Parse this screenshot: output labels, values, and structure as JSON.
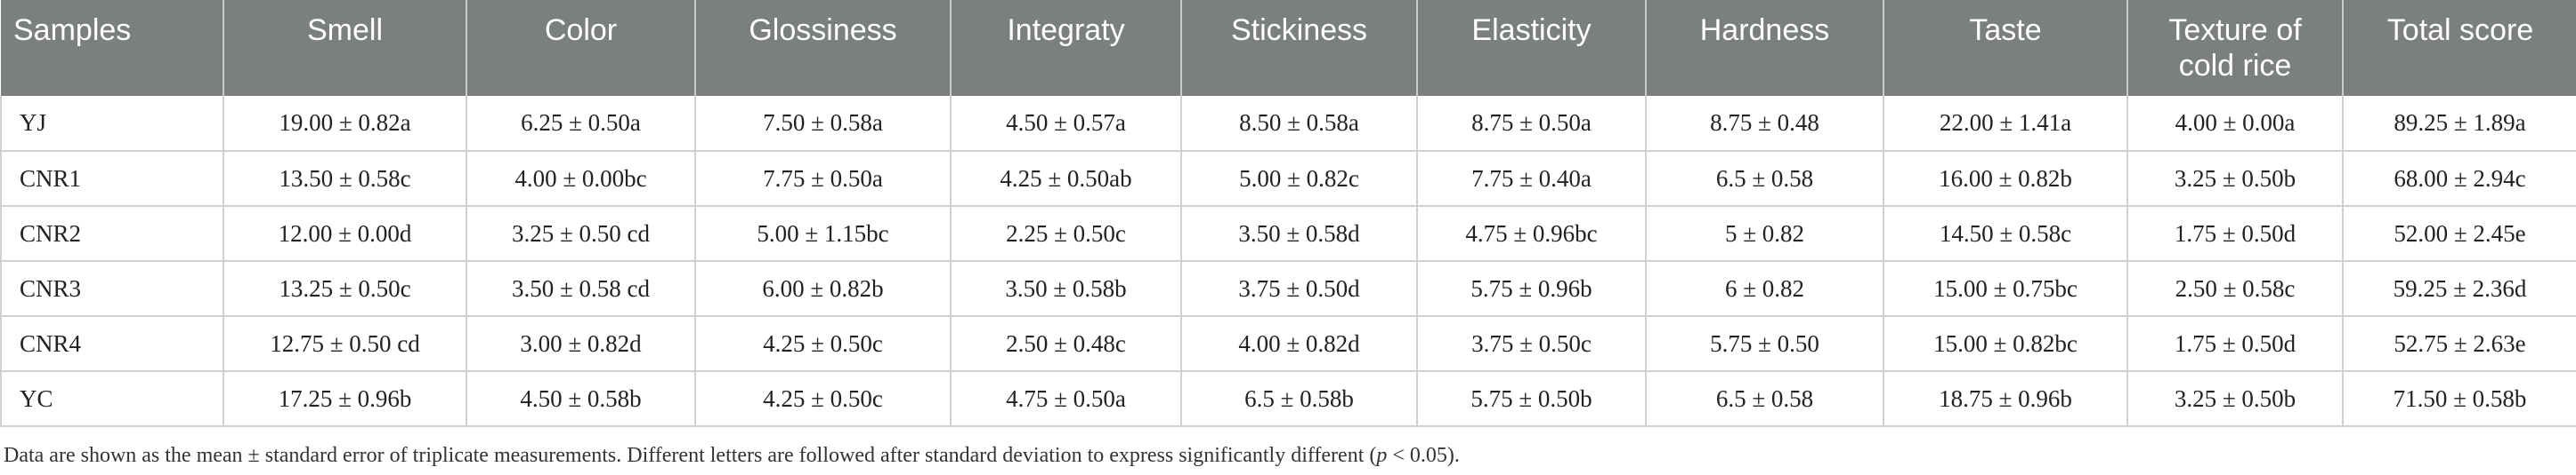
{
  "table": {
    "headers": [
      "Samples",
      "Smell",
      "Color",
      "Glossiness",
      "Integraty",
      "Stickiness",
      "Elasticity",
      "Hardness",
      "Taste",
      "Texture of cold rice",
      "Total score"
    ],
    "rows": [
      [
        "YJ",
        "19.00 ± 0.82a",
        "6.25 ± 0.50a",
        "7.50 ± 0.58a",
        "4.50 ± 0.57a",
        "8.50 ± 0.58a",
        "8.75 ± 0.50a",
        "8.75 ± 0.48",
        "22.00 ± 1.41a",
        "4.00 ± 0.00a",
        "89.25 ± 1.89a"
      ],
      [
        "CNR1",
        "13.50 ± 0.58c",
        "4.00 ± 0.00bc",
        "7.75 ± 0.50a",
        "4.25 ± 0.50ab",
        "5.00 ± 0.82c",
        "7.75 ± 0.40a",
        "6.5 ± 0.58",
        "16.00 ± 0.82b",
        "3.25 ± 0.50b",
        "68.00 ± 2.94c"
      ],
      [
        "CNR2",
        "12.00 ± 0.00d",
        "3.25 ± 0.50 cd",
        "5.00 ± 1.15bc",
        "2.25 ± 0.50c",
        "3.50 ± 0.58d",
        "4.75 ± 0.96bc",
        "5 ± 0.82",
        "14.50 ± 0.58c",
        "1.75 ± 0.50d",
        "52.00 ± 2.45e"
      ],
      [
        "CNR3",
        "13.25 ± 0.50c",
        "3.50 ± 0.58 cd",
        "6.00 ± 0.82b",
        "3.50 ± 0.58b",
        "3.75 ± 0.50d",
        "5.75 ± 0.96b",
        "6 ± 0.82",
        "15.00 ± 0.75bc",
        "2.50 ± 0.58c",
        "59.25 ± 2.36d"
      ],
      [
        "CNR4",
        "12.75 ± 0.50 cd",
        "3.00 ± 0.82d",
        "4.25 ± 0.50c",
        "2.50 ± 0.48c",
        "4.00 ± 0.82d",
        "3.75 ± 0.50c",
        "5.75 ± 0.50",
        "15.00 ± 0.82bc",
        "1.75 ± 0.50d",
        "52.75 ± 2.63e"
      ],
      [
        "YC",
        "17.25 ± 0.96b",
        "4.50 ± 0.58b",
        "4.25 ± 0.50c",
        "4.75 ± 0.50a",
        "6.5 ± 0.58b",
        "5.75 ± 0.50b",
        "6.5 ± 0.58",
        "18.75 ± 0.96b",
        "3.25 ± 0.50b",
        "71.50 ± 0.58b"
      ]
    ]
  },
  "footnote": {
    "text_before": "Data are shown as the mean ± standard error of triplicate measurements. Different letters are followed after standard deviation to express significantly different (",
    "p_symbol": "p",
    "text_after": " < 0.05)."
  },
  "colors": {
    "header_bg": "#7b7f7e",
    "header_text": "#ffffff",
    "grid": "#cfcfcf"
  }
}
